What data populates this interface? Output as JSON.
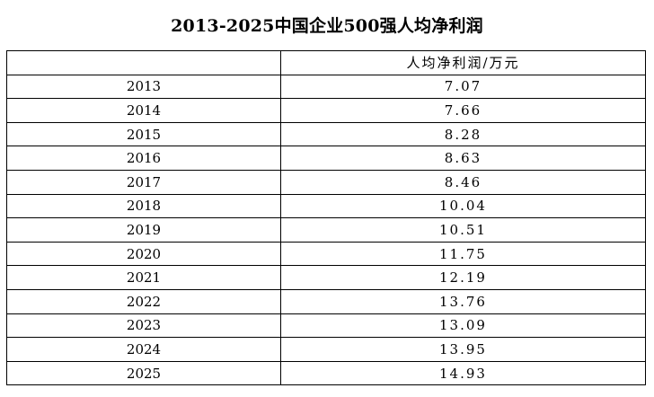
{
  "title": "2013-2025中国企业500强人均净利润",
  "table": {
    "headers": [
      "",
      "人均净利润/万元"
    ],
    "rows": [
      {
        "year": "2013",
        "value": "7.07"
      },
      {
        "year": "2014",
        "value": "7.66"
      },
      {
        "year": "2015",
        "value": "8.28"
      },
      {
        "year": "2016",
        "value": "8.63"
      },
      {
        "year": "2017",
        "value": "8.46"
      },
      {
        "year": "2018",
        "value": "10.04"
      },
      {
        "year": "2019",
        "value": "10.51"
      },
      {
        "year": "2020",
        "value": "11.75"
      },
      {
        "year": "2021",
        "value": "12.19"
      },
      {
        "year": "2022",
        "value": "13.76"
      },
      {
        "year": "2023",
        "value": "13.09"
      },
      {
        "year": "2024",
        "value": "13.95"
      },
      {
        "year": "2025",
        "value": "14.93"
      }
    ]
  },
  "chart_data": {
    "type": "table",
    "title": "2013-2025中国企业500强人均净利润",
    "columns": [
      "",
      "人均净利润/万元"
    ],
    "categories": [
      "2013",
      "2014",
      "2015",
      "2016",
      "2017",
      "2018",
      "2019",
      "2020",
      "2021",
      "2022",
      "2023",
      "2024",
      "2025"
    ],
    "values": [
      7.07,
      7.66,
      8.28,
      8.63,
      8.46,
      10.04,
      10.51,
      11.75,
      12.19,
      13.76,
      13.09,
      13.95,
      14.93
    ]
  }
}
